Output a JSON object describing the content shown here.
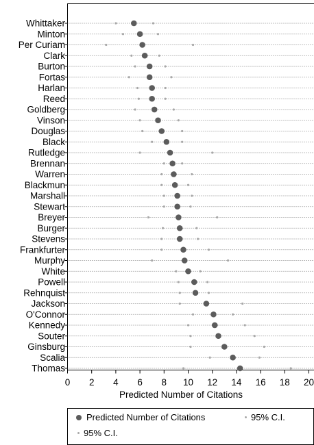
{
  "chart_data": {
    "type": "scatter",
    "xlabel": "Predicted Number of Citations",
    "ylabel": "",
    "xlim": [
      0,
      20
    ],
    "xticks": [
      "0",
      "2",
      "4",
      "6",
      "8",
      "10",
      "12",
      "14",
      "16",
      "18",
      "20"
    ],
    "grid": "dotted horizontal guide line per justice",
    "categories": [
      "Whittaker",
      "Minton",
      "Per Curiam",
      "Clark",
      "Burton",
      "Fortas",
      "Harlan",
      "Reed",
      "Goldberg",
      "Vinson",
      "Douglas",
      "Black",
      "Rutledge",
      "Brennan",
      "Warren",
      "Blackmun",
      "Marshall",
      "Stewart",
      "Breyer",
      "Burger",
      "Stevens",
      "Frankfurter",
      "Murphy",
      "White",
      "Powell",
      "Rehnquist",
      "Jackson",
      "O'Connor",
      "Kennedy",
      "Souter",
      "Ginsburg",
      "Scalia",
      "Thomas"
    ],
    "series": [
      {
        "name": "Predicted Number of Citations",
        "marker": "large dark circle",
        "color": "#5c5c5c",
        "values": [
          5.5,
          6.0,
          6.2,
          6.4,
          6.8,
          6.8,
          7.0,
          7.0,
          7.2,
          7.5,
          7.8,
          8.2,
          8.5,
          8.7,
          8.8,
          8.9,
          9.1,
          9.1,
          9.2,
          9.3,
          9.3,
          9.6,
          9.7,
          10.0,
          10.5,
          10.6,
          11.5,
          12.1,
          12.2,
          12.5,
          13.0,
          13.7,
          14.3
        ]
      },
      {
        "name": "95% C.I.",
        "marker": "small light dot",
        "color": "#a8a8a8",
        "values": [
          4.0,
          4.6,
          3.2,
          5.3,
          5.6,
          5.1,
          5.8,
          5.9,
          5.6,
          6.0,
          6.2,
          7.0,
          6.0,
          8.0,
          7.8,
          7.8,
          8.0,
          8.0,
          6.7,
          7.9,
          7.8,
          7.8,
          7.0,
          9.0,
          9.2,
          9.3,
          9.3,
          10.4,
          10.0,
          10.2,
          10.2,
          11.8,
          9.6
        ]
      },
      {
        "name": "95% C.I.",
        "marker": "small light dot",
        "color": "#a8a8a8",
        "values": [
          7.1,
          7.5,
          10.4,
          7.6,
          8.1,
          8.6,
          8.1,
          8.1,
          8.8,
          9.2,
          9.5,
          9.5,
          12.0,
          9.5,
          10.3,
          10.0,
          10.3,
          10.2,
          12.4,
          10.7,
          10.8,
          11.7,
          13.3,
          11.0,
          11.6,
          11.7,
          14.5,
          13.7,
          14.7,
          15.5,
          16.3,
          15.9,
          18.5
        ]
      }
    ],
    "legend": {
      "placement": "bottom",
      "items": [
        "Predicted Number of Citations",
        "95% C.I.",
        "95% C.I."
      ]
    }
  }
}
